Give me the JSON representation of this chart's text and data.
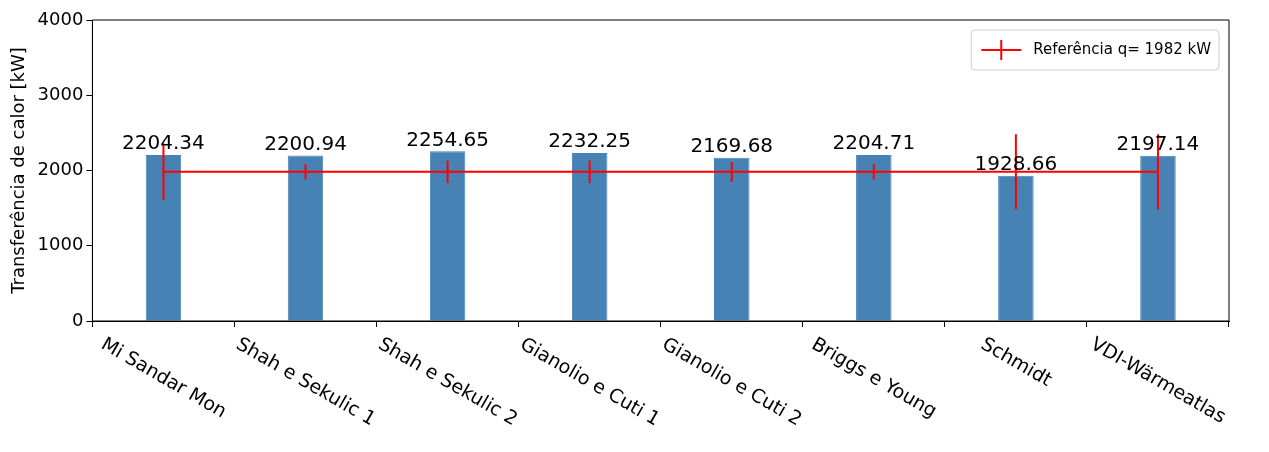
{
  "chart_data": {
    "type": "bar",
    "categories": [
      "Mi Sandar Mon",
      "Shah e Sekulic 1",
      "Shah e Sekulic 2",
      "Gianolio e Cuti 1",
      "Gianolio e Cuti 2",
      "Briggs e Young",
      "Schmidt",
      "VDI-Wärmeatlas"
    ],
    "series": [
      {
        "color": "#4682b4",
        "values": [
          2204.34,
          2200.94,
          2254.65,
          2232.25,
          2169.68,
          2204.71,
          1928.66,
          2197.14
        ],
        "value_labels": [
          "2204.34",
          "2200.94",
          "2254.65",
          "2232.25",
          "2169.68",
          "2204.71",
          "1928.66",
          "2197.14"
        ]
      },
      {
        "type": "line",
        "name": "Referência q= 1982 kW",
        "color": "#ff0000",
        "values": [
          1982,
          1982,
          1982,
          1982,
          1982,
          1982,
          1982,
          1982
        ],
        "errors": [
          380,
          100,
          150,
          150,
          130,
          100,
          500,
          500
        ]
      }
    ],
    "ylabel": "Transferência de calor [kW]",
    "ylim": [
      0,
      4000
    ],
    "yticks": [
      0,
      1000,
      2000,
      3000,
      4000
    ],
    "grid": false,
    "legend": "top right",
    "marker": "none"
  }
}
